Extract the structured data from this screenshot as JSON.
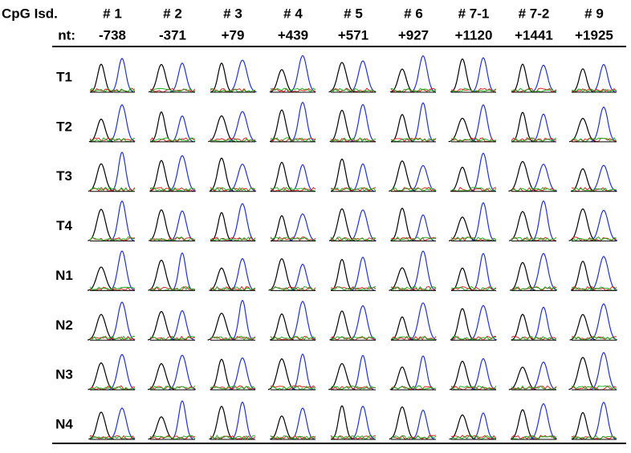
{
  "header": {
    "label": "CpG Isd.",
    "nt_label": "nt:",
    "columns": [
      {
        "name": "# 1",
        "nt": "-738"
      },
      {
        "name": "# 2",
        "nt": "-371"
      },
      {
        "name": "# 3",
        "nt": "+79"
      },
      {
        "name": "# 4",
        "nt": "+439"
      },
      {
        "name": "# 5",
        "nt": "+571"
      },
      {
        "name": "# 6",
        "nt": "+927"
      },
      {
        "name": "# 7-1",
        "nt": "+1120"
      },
      {
        "name": "# 7-2",
        "nt": "+1441"
      },
      {
        "name": "# 9",
        "nt": "+1925"
      }
    ]
  },
  "rows": [
    "T1",
    "T2",
    "T3",
    "T4",
    "N1",
    "N2",
    "N3",
    "N4"
  ]
}
